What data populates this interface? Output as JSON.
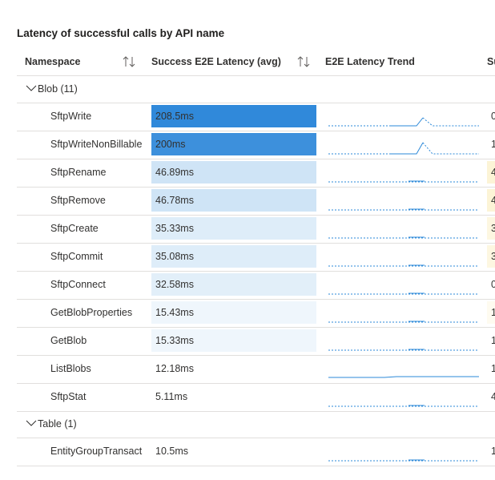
{
  "title": "Latency of successful calls by API name",
  "columns": [
    "Namespace",
    "Success E2E Latency (avg)",
    "E2E Latency Trend",
    "Su"
  ],
  "groups": [
    {
      "label": "Blob (11)",
      "rows": [
        {
          "name": "SftpWrite",
          "latency": "208.5ms",
          "shade": "#3089da",
          "next": "0",
          "next_shade": "#ffffff"
        },
        {
          "name": "SftpWriteNonBillable",
          "latency": "200ms",
          "shade": "#3d90dc",
          "next": "1",
          "next_shade": "#ffffff"
        },
        {
          "name": "SftpRename",
          "latency": "46.89ms",
          "shade": "#cfe4f6",
          "next": "4",
          "next_shade": "#fcf4d6"
        },
        {
          "name": "SftpRemove",
          "latency": "46.78ms",
          "shade": "#cfe4f6",
          "next": "4",
          "next_shade": "#fcf4d6"
        },
        {
          "name": "SftpCreate",
          "latency": "35.33ms",
          "shade": "#deedf9",
          "next": "3",
          "next_shade": "#fdf7e1"
        },
        {
          "name": "SftpCommit",
          "latency": "35.08ms",
          "shade": "#deedf9",
          "next": "3",
          "next_shade": "#fdf7e1"
        },
        {
          "name": "SftpConnect",
          "latency": "32.58ms",
          "shade": "#e2eff9",
          "next": "0",
          "next_shade": "#ffffff"
        },
        {
          "name": "GetBlobProperties",
          "latency": "15.43ms",
          "shade": "#eff6fc",
          "next": "1",
          "next_shade": "#fefbf0"
        },
        {
          "name": "GetBlob",
          "latency": "15.33ms",
          "shade": "#eff6fc",
          "next": "1",
          "next_shade": "#ffffff"
        },
        {
          "name": "ListBlobs",
          "latency": "12.18ms",
          "shade": "#ffffff",
          "next": "1",
          "next_shade": "#ffffff"
        },
        {
          "name": "SftpStat",
          "latency": "5.11ms",
          "shade": "#ffffff",
          "next": "4",
          "next_shade": "#ffffff"
        }
      ]
    },
    {
      "label": "Table (1)",
      "rows": [
        {
          "name": "EntityGroupTransact",
          "latency": "10.5ms",
          "shade": "#ffffff",
          "next": "1",
          "next_shade": "#ffffff"
        }
      ]
    }
  ]
}
